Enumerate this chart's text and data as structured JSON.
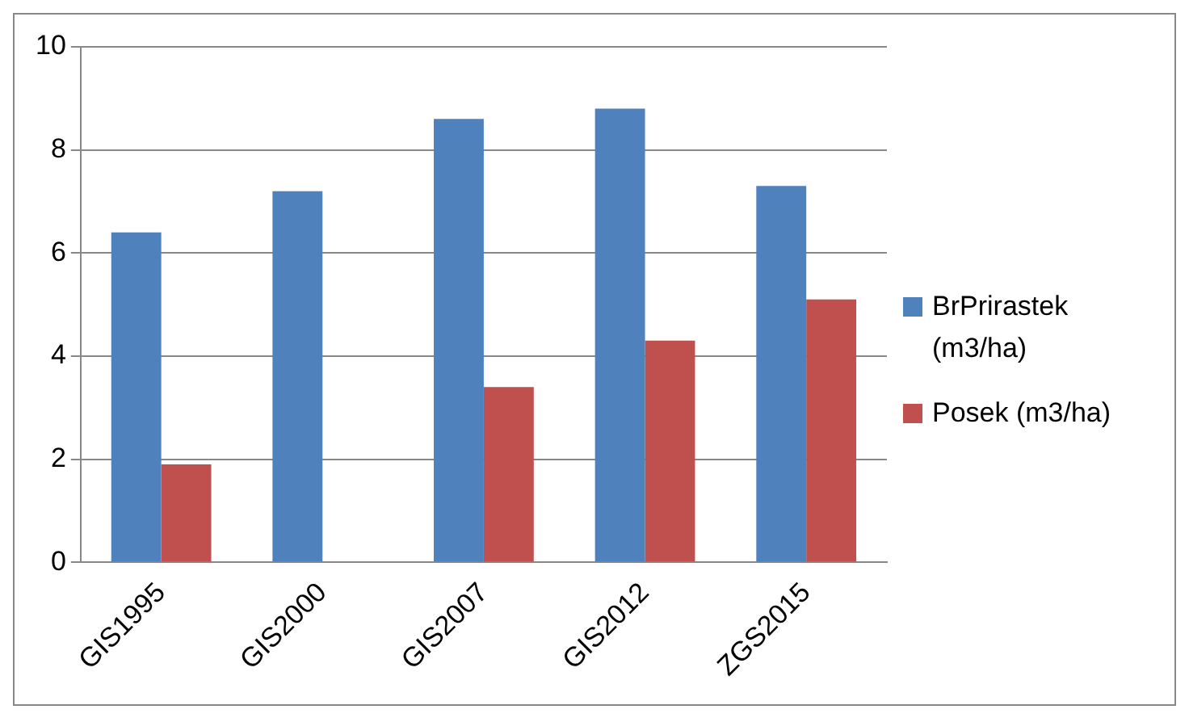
{
  "chart_data": {
    "type": "bar",
    "categories": [
      "GIS1995",
      "GIS2000",
      "GIS2007",
      "GIS2012",
      "ZGS2015"
    ],
    "series": [
      {
        "name": "BrPrirastek (m3/ha)",
        "color": "#4f81bd",
        "values": [
          6.4,
          7.2,
          8.6,
          8.8,
          7.3
        ]
      },
      {
        "name": "Posek (m3/ha)",
        "color": "#c0504d",
        "values": [
          1.9,
          null,
          3.4,
          4.3,
          5.1
        ]
      }
    ],
    "ylim": [
      0,
      10
    ],
    "yticks": [
      0,
      2,
      4,
      6,
      8,
      10
    ],
    "grid": "y",
    "legend": "right"
  }
}
